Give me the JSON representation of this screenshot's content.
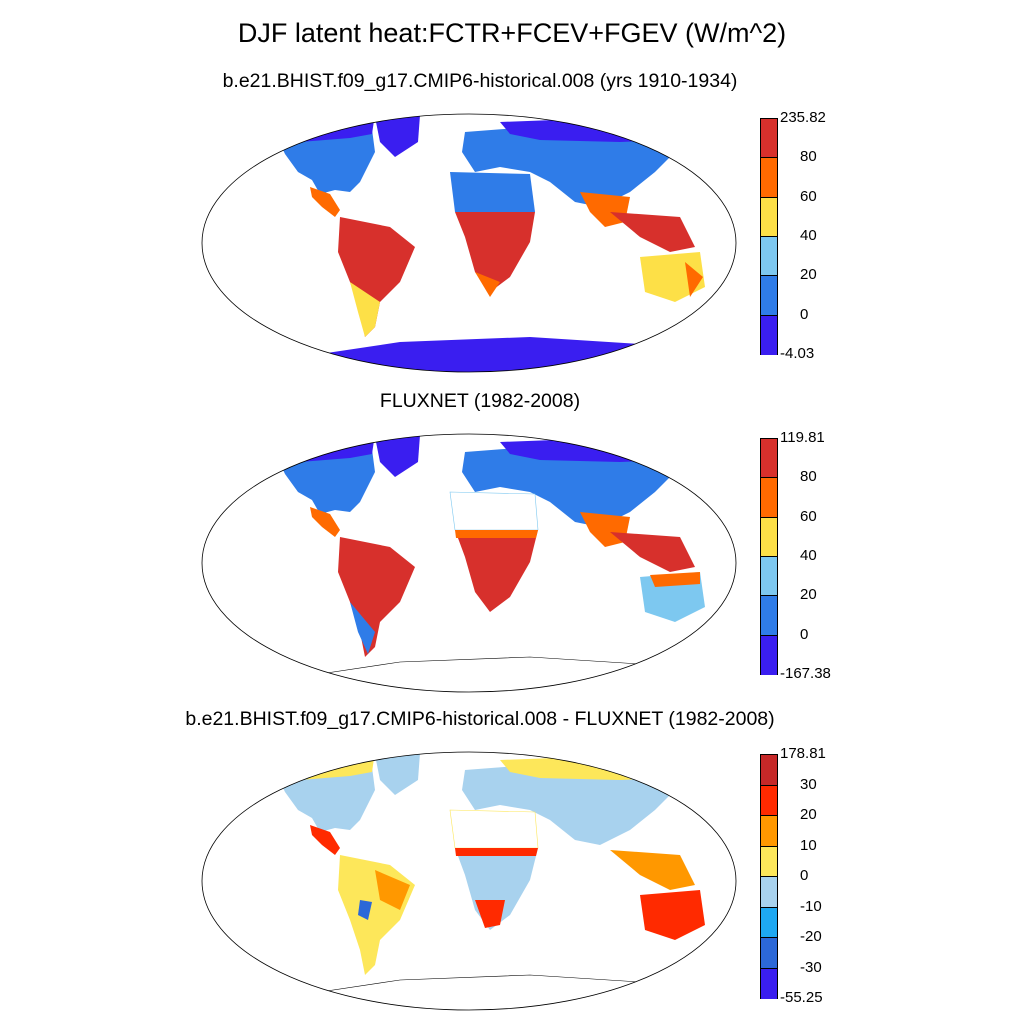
{
  "title": "DJF latent heat:FCTR+FCEV+FGEV (W/m^2)",
  "panels": [
    {
      "subtitle": "b.e21.BHIST.f09_g17.CMIP6-historical.008 (yrs 1910-1934)",
      "colorbar": {
        "labels": [
          "235.82",
          "80",
          "60",
          "40",
          "20",
          "0",
          "-4.03"
        ],
        "colors": [
          "#d7302c",
          "#ff6a00",
          "#fde047",
          "#7dc8f0",
          "#2f7ce8",
          "#3a1ef0"
        ]
      }
    },
    {
      "subtitle": "FLUXNET (1982-2008)",
      "colorbar": {
        "labels": [
          "119.81",
          "80",
          "60",
          "40",
          "20",
          "0",
          "-167.38"
        ],
        "colors": [
          "#d7302c",
          "#ff6a00",
          "#fde047",
          "#7dc8f0",
          "#2f7ce8",
          "#3a1ef0"
        ]
      }
    },
    {
      "subtitle": "b.e21.BHIST.f09_g17.CMIP6-historical.008 - FLUXNET (1982-2008)",
      "colorbar": {
        "labels": [
          "178.81",
          "30",
          "20",
          "10",
          "0",
          "-10",
          "-20",
          "-30",
          "-55.25"
        ],
        "colors": [
          "#c62828",
          "#ff2a00",
          "#ff9800",
          "#fde75a",
          "#a8d2ee",
          "#1ea8f2",
          "#2c68d8",
          "#3a1ef0"
        ]
      }
    }
  ],
  "land_colors": {
    "panel1": {
      "north": "#3a1ef0",
      "mid": "#2f7ce8",
      "tropic": "#d7302c",
      "transition": "#ff6a00",
      "semi": "#fde047",
      "light": "#7dc8f0"
    },
    "panel2": {
      "north": "#3a1ef0",
      "mid": "#2f7ce8",
      "tropic": "#d7302c",
      "transition": "#ff6a00",
      "semi": "#fde047",
      "light": "#7dc8f0"
    },
    "panel3": {
      "mostly": "#a8d2ee",
      "yellow": "#fde75a",
      "red": "#ff2a00",
      "orange": "#ff9800",
      "blue": "#2c68d8"
    }
  }
}
